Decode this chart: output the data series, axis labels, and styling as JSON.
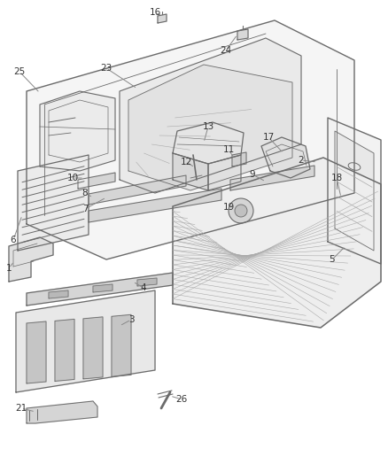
{
  "background_color": "#ffffff",
  "line_color": "#6b6b6b",
  "text_color": "#333333",
  "fig_width": 4.38,
  "fig_height": 5.33,
  "dpi": 100
}
